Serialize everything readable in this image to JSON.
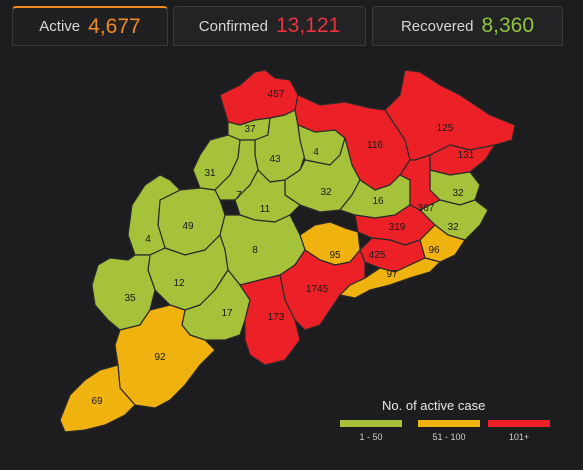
{
  "tabs": [
    {
      "label": "Active",
      "value": "4,677",
      "color": "#f08a24",
      "selected": true
    },
    {
      "label": "Confirmed",
      "value": "13,121",
      "color": "#e8323c",
      "selected": false
    },
    {
      "label": "Recovered",
      "value": "8,360",
      "color": "#8ec63f",
      "selected": false
    }
  ],
  "map": {
    "districts": [
      {
        "value": "457",
        "level": "high"
      },
      {
        "value": "37",
        "level": "low"
      },
      {
        "value": "43",
        "level": "low"
      },
      {
        "value": "4",
        "level": "low"
      },
      {
        "value": "116",
        "level": "high"
      },
      {
        "value": "125",
        "level": "high"
      },
      {
        "value": "131",
        "level": "high"
      },
      {
        "value": "31",
        "level": "low"
      },
      {
        "value": "7",
        "level": "low"
      },
      {
        "value": "32",
        "level": "low"
      },
      {
        "value": "32",
        "level": "low"
      },
      {
        "value": "16",
        "level": "low"
      },
      {
        "value": "367",
        "level": "high"
      },
      {
        "value": "32",
        "level": "low"
      },
      {
        "value": "11",
        "level": "low"
      },
      {
        "value": "49",
        "level": "low"
      },
      {
        "value": "4",
        "level": "low"
      },
      {
        "value": "319",
        "level": "high"
      },
      {
        "value": "95",
        "level": "mid"
      },
      {
        "value": "96",
        "level": "mid"
      },
      {
        "value": "8",
        "level": "low"
      },
      {
        "value": "425",
        "level": "high"
      },
      {
        "value": "97",
        "level": "mid"
      },
      {
        "value": "1745",
        "level": "high"
      },
      {
        "value": "12",
        "level": "low"
      },
      {
        "value": "35",
        "level": "low"
      },
      {
        "value": "17",
        "level": "low"
      },
      {
        "value": "173",
        "level": "high"
      },
      {
        "value": "92",
        "level": "mid"
      },
      {
        "value": "69",
        "level": "mid"
      }
    ],
    "colors": {
      "low": "#a5c23a",
      "mid": "#f0b20f",
      "high": "#ec2127"
    }
  },
  "legend": {
    "title": "No. of active case",
    "items": [
      {
        "label": "1 - 50",
        "color": "#a5c23a"
      },
      {
        "label": "51 - 100",
        "color": "#f0b20f"
      },
      {
        "label": "101+",
        "color": "#ec2127"
      }
    ]
  }
}
